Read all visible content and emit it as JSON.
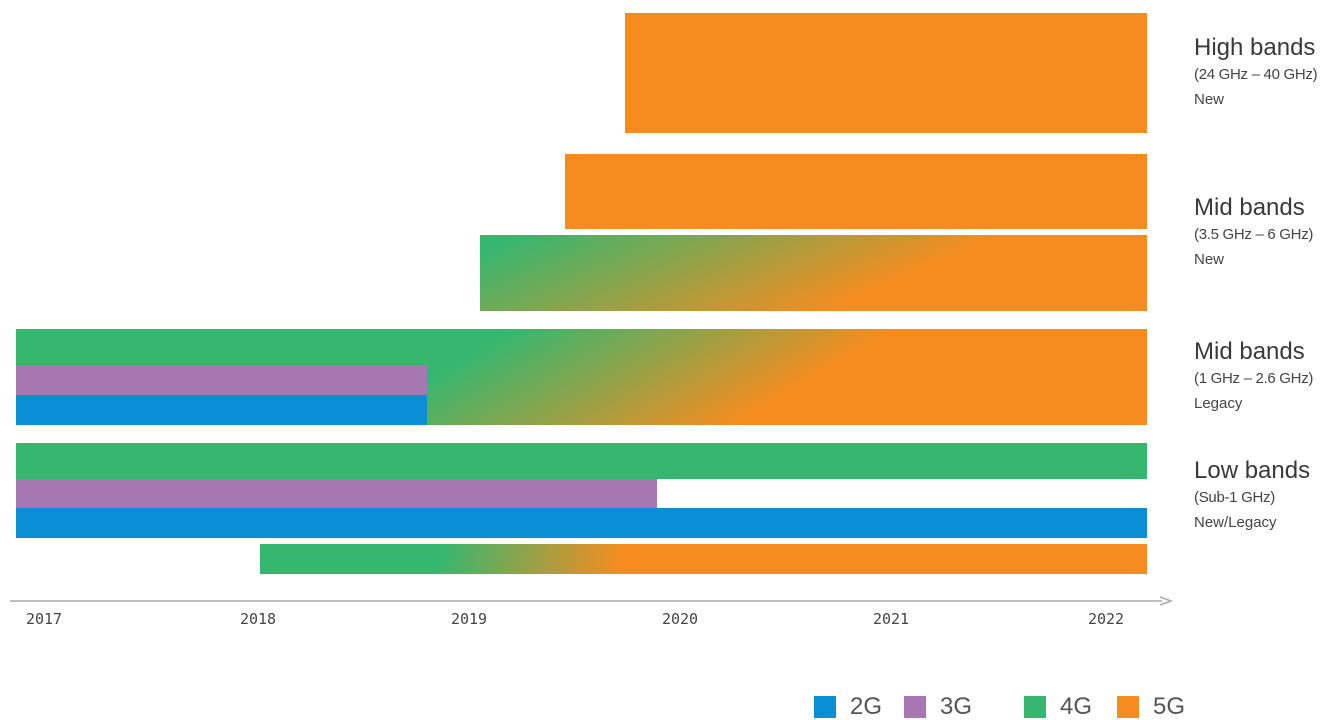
{
  "chart_data": {
    "type": "bar",
    "title": "",
    "xlabel": "",
    "ylabel": "",
    "x_ticks": [
      "2017",
      "2018",
      "2019",
      "2020",
      "2021",
      "2022"
    ],
    "xlim": [
      2017,
      2022.3
    ],
    "legend": {
      "placement": "bottom-right",
      "entries": [
        {
          "name": "2G",
          "color": "#0a8ed6"
        },
        {
          "name": "3G",
          "color": "#a777b2"
        },
        {
          "name": "4G",
          "color": "#35b770"
        },
        {
          "name": "5G",
          "color": "#f68c1f"
        }
      ]
    },
    "bands": [
      {
        "title": "High bands",
        "range": "(24 GHz – 40 GHz)",
        "type": "New",
        "rows": [
          {
            "tech": "5G",
            "start": 2019.73,
            "end": 2022.22
          }
        ]
      },
      {
        "title": "Mid bands",
        "range": "(3.5 GHz – 6 GHz)",
        "type": "New",
        "rows": [
          {
            "tech": "5G",
            "start": 2019.45,
            "end": 2022.22
          },
          {
            "tech": "4G→5G",
            "start": 2019.05,
            "end": 2022.22
          }
        ]
      },
      {
        "title": "Mid bands",
        "range": "(1 GHz – 2.6 GHz)",
        "type": "Legacy",
        "rows": [
          {
            "tech": "4G",
            "start": 2017,
            "end": 2018.8
          },
          {
            "tech": "3G",
            "start": 2017,
            "end": 2018.8
          },
          {
            "tech": "2G",
            "start": 2017,
            "end": 2018.8
          },
          {
            "tech": "4G→5G",
            "start": 2018.8,
            "end": 2022.22
          }
        ]
      },
      {
        "title": "Low bands",
        "range": "(Sub-1 GHz)",
        "type": "New/Legacy",
        "rows": [
          {
            "tech": "4G",
            "start": 2017,
            "end": 2022.22
          },
          {
            "tech": "3G",
            "start": 2017,
            "end": 2019.85
          },
          {
            "tech": "2G",
            "start": 2017,
            "end": 2022.22
          },
          {
            "tech": "4G→5G",
            "start": 2018.15,
            "end": 2022.22
          }
        ]
      }
    ]
  }
}
